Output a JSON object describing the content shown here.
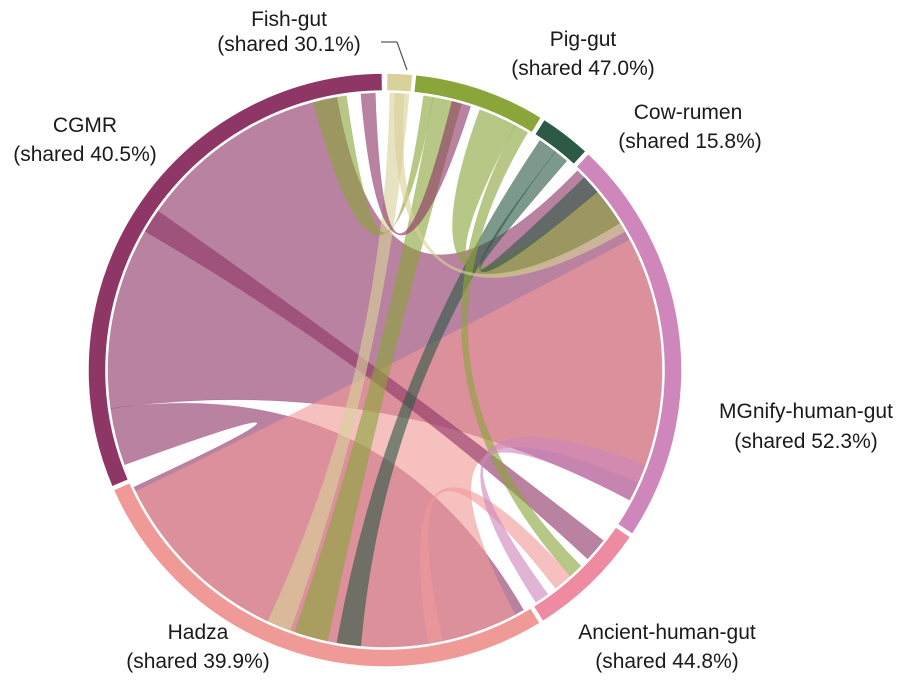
{
  "chart_data": {
    "type": "chord",
    "title": "",
    "segments": [
      {
        "name": "Fish-gut",
        "shared_label": "(shared 30.1%)",
        "shared_pct": 30.1,
        "color": "#d8d29a"
      },
      {
        "name": "Pig-gut",
        "shared_label": "(shared 47.0%)",
        "shared_pct": 47.0,
        "color": "#8aa53a"
      },
      {
        "name": "Cow-rumen",
        "shared_label": "(shared 15.8%)",
        "shared_pct": 15.8,
        "color": "#2d5a45"
      },
      {
        "name": "MGnify-human-gut",
        "shared_label": "(shared 52.3%)",
        "shared_pct": 52.3,
        "color": "#cf86bb"
      },
      {
        "name": "Ancient-human-gut",
        "shared_label": "(shared 44.8%)",
        "shared_pct": 44.8,
        "color": "#ee8aa2"
      },
      {
        "name": "Hadza",
        "shared_label": "(shared 39.9%)",
        "shared_pct": 39.9,
        "color": "#f09a98"
      },
      {
        "name": "CGMR",
        "shared_label": "(shared 40.5%)",
        "shared_pct": 40.5,
        "color": "#8e3665"
      }
    ]
  }
}
